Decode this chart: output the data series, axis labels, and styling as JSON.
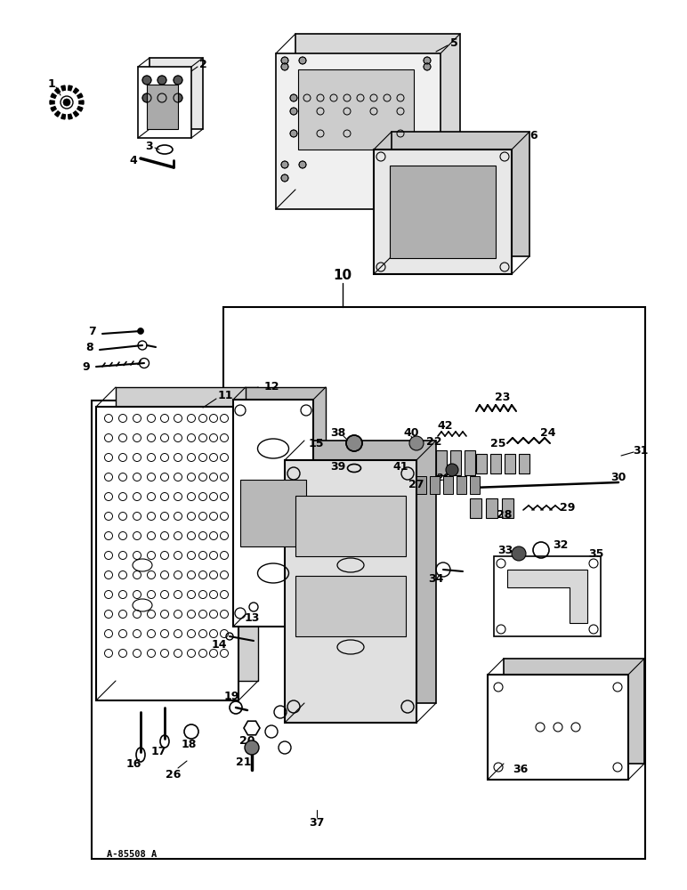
{
  "background_color": "#ffffff",
  "watermark": "A-85508 A",
  "fig_w": 7.72,
  "fig_h": 10.0,
  "dpi": 100
}
